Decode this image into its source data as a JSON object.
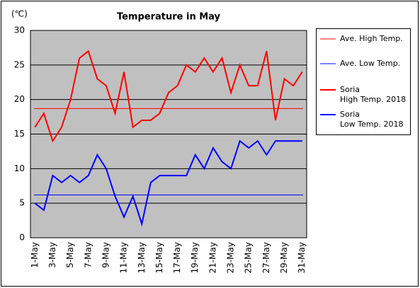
{
  "chart_data": {
    "type": "line",
    "title": "Temperature in May",
    "y_label": "(℃)",
    "categories": [
      "1-May",
      null,
      "3-May",
      null,
      "5-May",
      null,
      "7-May",
      null,
      "9-May",
      null,
      "11-May",
      null,
      "13-May",
      null,
      "15-May",
      null,
      "17-May",
      null,
      "19-May",
      null,
      "21-May",
      null,
      "23-May",
      null,
      "25-May",
      null,
      "27-May",
      null,
      "29-May",
      null,
      "31-May"
    ],
    "reference_lines": [
      {
        "name": "Ave. High Temp.",
        "color": "#ff0000",
        "value": 18.7
      },
      {
        "name": "Ave. Low Temp.",
        "color": "#0000ff",
        "value": 6.2
      }
    ],
    "series": [
      {
        "name": "Soria\nHigh Temp. 2018",
        "color": "#ff0000",
        "values": [
          16,
          18,
          14,
          16,
          20,
          26,
          27,
          23,
          22,
          18,
          24,
          16,
          17,
          17,
          18,
          21,
          22,
          25,
          24,
          26,
          24,
          26,
          21,
          25,
          22,
          22,
          27,
          17,
          23,
          22,
          24
        ]
      },
      {
        "name": "Soria\nLow Temp. 2018",
        "color": "#0000ff",
        "values": [
          5,
          4,
          9,
          8,
          9,
          8,
          9,
          12,
          10,
          6,
          3,
          6,
          2,
          8,
          9,
          9,
          9,
          9,
          12,
          10,
          13,
          11,
          10,
          14,
          13,
          14,
          12,
          14,
          14,
          14,
          14
        ]
      }
    ],
    "ylim": [
      0,
      30
    ],
    "yticks": [
      0,
      5,
      10,
      15,
      20,
      25,
      30
    ],
    "grid": true
  }
}
